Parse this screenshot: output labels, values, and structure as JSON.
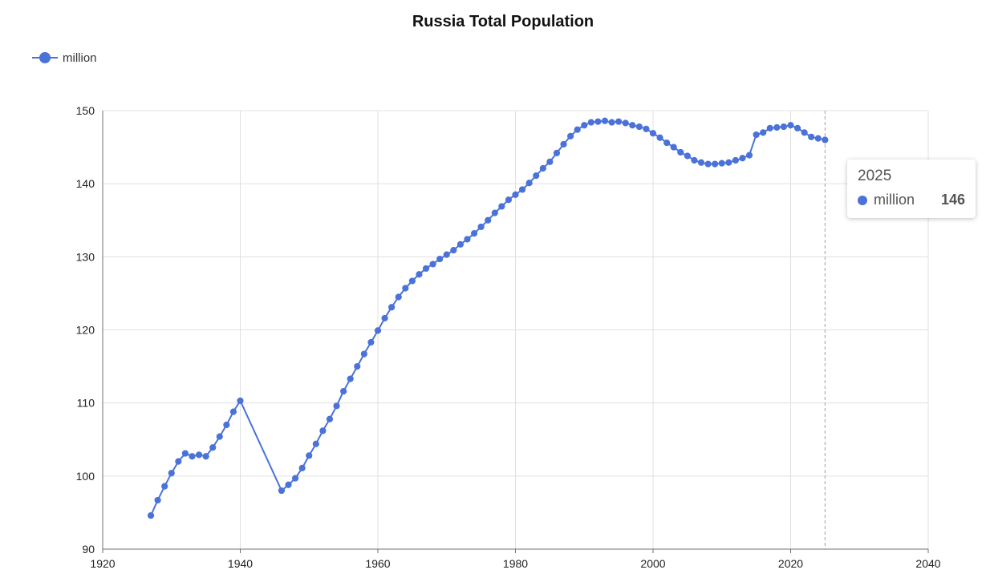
{
  "chart_data": {
    "type": "line",
    "title": "Russia Total Population",
    "xlabel": "",
    "ylabel": "",
    "xlim": [
      1920,
      2040
    ],
    "ylim": [
      90,
      150
    ],
    "xticks": [
      1920,
      1940,
      1960,
      1980,
      2000,
      2020,
      2040
    ],
    "yticks": [
      90,
      100,
      110,
      120,
      130,
      140,
      150
    ],
    "grid": true,
    "legend_position": "top-left",
    "color": "#4a72d9",
    "series": [
      {
        "name": "million",
        "x": [
          1927,
          1928,
          1929,
          1930,
          1931,
          1932,
          1933,
          1934,
          1935,
          1936,
          1937,
          1938,
          1939,
          1940,
          1946,
          1947,
          1948,
          1949,
          1950,
          1951,
          1952,
          1953,
          1954,
          1955,
          1956,
          1957,
          1958,
          1959,
          1960,
          1961,
          1962,
          1963,
          1964,
          1965,
          1966,
          1967,
          1968,
          1969,
          1970,
          1971,
          1972,
          1973,
          1974,
          1975,
          1976,
          1977,
          1978,
          1979,
          1980,
          1981,
          1982,
          1983,
          1984,
          1985,
          1986,
          1987,
          1988,
          1989,
          1990,
          1991,
          1992,
          1993,
          1994,
          1995,
          1996,
          1997,
          1998,
          1999,
          2000,
          2001,
          2002,
          2003,
          2004,
          2005,
          2006,
          2007,
          2008,
          2009,
          2010,
          2011,
          2012,
          2013,
          2014,
          2015,
          2016,
          2017,
          2018,
          2019,
          2020,
          2021,
          2022,
          2023,
          2024,
          2025
        ],
        "values": [
          94.6,
          96.7,
          98.6,
          100.4,
          102.0,
          103.1,
          102.7,
          102.9,
          102.7,
          103.9,
          105.4,
          107.0,
          108.8,
          110.3,
          98.0,
          98.8,
          99.7,
          101.1,
          102.8,
          104.4,
          106.2,
          107.8,
          109.6,
          111.6,
          113.3,
          115.0,
          116.7,
          118.3,
          119.9,
          121.6,
          123.1,
          124.5,
          125.7,
          126.7,
          127.6,
          128.4,
          129.0,
          129.7,
          130.3,
          130.9,
          131.7,
          132.4,
          133.2,
          134.1,
          135.0,
          136.0,
          136.9,
          137.8,
          138.5,
          139.2,
          140.1,
          141.1,
          142.1,
          143.0,
          144.2,
          145.4,
          146.5,
          147.4,
          148.0,
          148.4,
          148.5,
          148.6,
          148.4,
          148.5,
          148.3,
          148.0,
          147.8,
          147.5,
          146.9,
          146.3,
          145.6,
          145.0,
          144.3,
          143.8,
          143.2,
          142.9,
          142.7,
          142.7,
          142.8,
          142.9,
          143.2,
          143.5,
          143.9,
          146.7,
          147.0,
          147.6,
          147.7,
          147.8,
          148.0,
          147.6,
          147.0,
          146.4,
          146.2,
          146.0
        ]
      }
    ],
    "tooltip": {
      "x_label": "2025",
      "series_name": "million",
      "value": "146"
    }
  }
}
